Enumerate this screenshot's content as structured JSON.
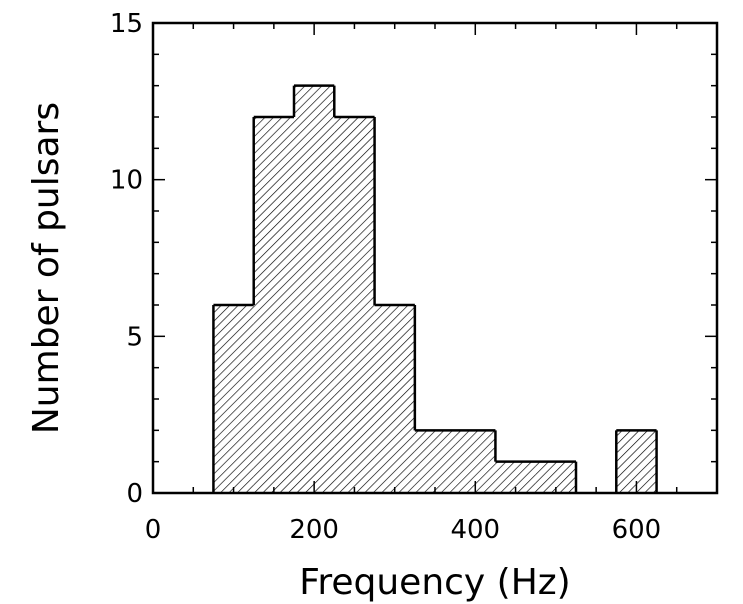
{
  "chart_data": {
    "type": "bar",
    "title": "",
    "xlabel": "Frequency (Hz)",
    "ylabel": "Number of pulsars",
    "xlim": [
      0,
      700
    ],
    "ylim": [
      0,
      15
    ],
    "x_major_ticks": [
      0,
      200,
      400,
      600
    ],
    "x_minor_ticks": [
      0,
      50,
      100,
      150,
      200,
      250,
      300,
      350,
      400,
      450,
      500,
      550,
      600,
      650,
      700
    ],
    "y_major_ticks": [
      0,
      5,
      10,
      15
    ],
    "y_minor_ticks": [
      0,
      1,
      2,
      3,
      4,
      5,
      6,
      7,
      8,
      9,
      10,
      11,
      12,
      13,
      14,
      15
    ],
    "tick_labels": {
      "x": [
        "0",
        "200",
        "400",
        "600"
      ],
      "y": [
        "0",
        "5",
        "10",
        "15"
      ]
    },
    "bin_width": 50,
    "bin_starts": [
      75,
      125,
      175,
      225,
      275,
      325,
      375,
      425,
      475,
      525,
      575
    ],
    "values": [
      6,
      12,
      13,
      12,
      6,
      2,
      2,
      1,
      1,
      0,
      2
    ],
    "fill_pattern": "diagonal hatch",
    "grid": false,
    "legend": "none"
  }
}
